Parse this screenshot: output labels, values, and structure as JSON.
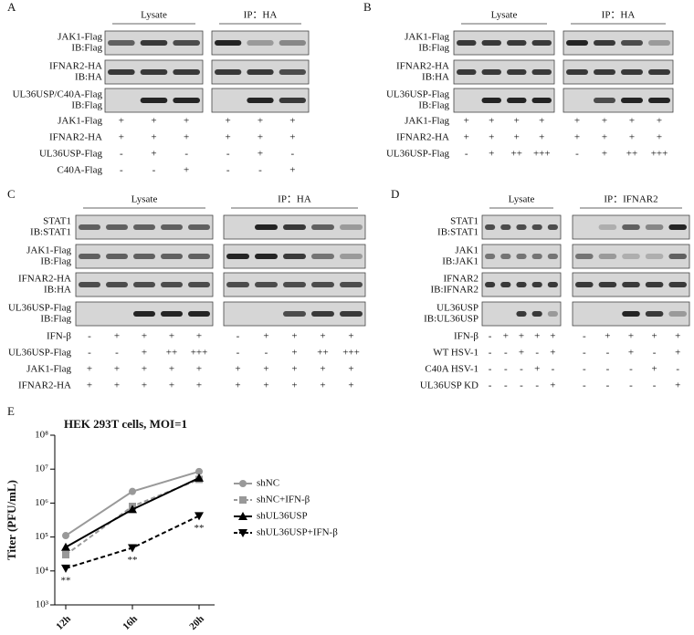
{
  "panels": [
    {
      "letter": "A",
      "groups": [
        "Lysate",
        "IP：HA"
      ],
      "blots": [
        {
          "label": [
            "JAK1-Flag",
            "IB:Flag"
          ]
        },
        {
          "label": [
            "IFNAR2-HA",
            "IB:HA"
          ]
        },
        {
          "label": [
            "UL36USP/C40A-Flag",
            "IB:Flag"
          ]
        }
      ],
      "conditions": [
        {
          "label": "JAK1-Flag",
          "lysate": [
            "+",
            "+",
            "+"
          ],
          "ip": [
            "+",
            "+",
            "+"
          ]
        },
        {
          "label": "IFNAR2-HA",
          "lysate": [
            "+",
            "+",
            "+"
          ],
          "ip": [
            "+",
            "+",
            "+"
          ]
        },
        {
          "label": "UL36USP-Flag",
          "lysate": [
            "-",
            "+",
            "-"
          ],
          "ip": [
            "-",
            "+",
            "-"
          ]
        },
        {
          "label": "C40A-Flag",
          "lysate": [
            "-",
            "-",
            "+"
          ],
          "ip": [
            "-",
            "-",
            "+"
          ]
        }
      ]
    },
    {
      "letter": "B",
      "groups": [
        "Lysate",
        "IP：HA"
      ],
      "blots": [
        {
          "label": [
            "JAK1-Flag",
            "IB:Flag"
          ]
        },
        {
          "label": [
            "IFNAR2-HA",
            "IB:HA"
          ]
        },
        {
          "label": [
            "UL36USP-Flag",
            "IB:Flag"
          ]
        }
      ],
      "conditions": [
        {
          "label": "JAK1-Flag",
          "lysate": [
            "+",
            "+",
            "+",
            "+"
          ],
          "ip": [
            "+",
            "+",
            "+",
            "+"
          ]
        },
        {
          "label": "IFNAR2-HA",
          "lysate": [
            "+",
            "+",
            "+",
            "+"
          ],
          "ip": [
            "+",
            "+",
            "+",
            "+"
          ]
        },
        {
          "label": "UL36USP-Flag",
          "lysate": [
            "-",
            "+",
            "++",
            "+++"
          ],
          "ip": [
            "-",
            "+",
            "++",
            "+++"
          ]
        }
      ]
    },
    {
      "letter": "C",
      "groups": [
        "Lysate",
        "IP：HA"
      ],
      "blots": [
        {
          "label": [
            "STAT1",
            "IB:STAT1"
          ]
        },
        {
          "label": [
            "JAK1-Flag",
            "IB:Flag"
          ]
        },
        {
          "label": [
            "IFNAR2-HA",
            "IB:HA"
          ]
        },
        {
          "label": [
            "UL36USP-Flag",
            "IB:Flag"
          ]
        }
      ],
      "conditions": [
        {
          "label": "IFN-β",
          "lysate": [
            "-",
            "+",
            "+",
            "+",
            "+"
          ],
          "ip": [
            "-",
            "+",
            "+",
            "+",
            "+"
          ]
        },
        {
          "label": "UL36USP-Flag",
          "lysate": [
            "-",
            "-",
            "+",
            "++",
            "+++"
          ],
          "ip": [
            "-",
            "-",
            "+",
            "++",
            "+++"
          ]
        },
        {
          "label": "JAK1-Flag",
          "lysate": [
            "+",
            "+",
            "+",
            "+",
            "+"
          ],
          "ip": [
            "+",
            "+",
            "+",
            "+",
            "+"
          ]
        },
        {
          "label": "IFNAR2-HA",
          "lysate": [
            "+",
            "+",
            "+",
            "+",
            "+"
          ],
          "ip": [
            "+",
            "+",
            "+",
            "+",
            "+"
          ]
        }
      ]
    },
    {
      "letter": "D",
      "groups": [
        "Lysate",
        "IP：IFNAR2"
      ],
      "blots": [
        {
          "label": [
            "STAT1",
            "IB:STAT1"
          ]
        },
        {
          "label": [
            "JAK1",
            "IB:JAK1"
          ]
        },
        {
          "label": [
            "IFNAR2",
            "IB:IFNAR2"
          ]
        },
        {
          "label": [
            "UL36USP",
            "IB:UL36USP"
          ]
        }
      ],
      "conditions": [
        {
          "label": "IFN-β",
          "lysate": [
            "-",
            "+",
            "+",
            "+",
            "+"
          ],
          "ip": [
            "-",
            "+",
            "+",
            "+",
            "+"
          ]
        },
        {
          "label": "WT HSV-1",
          "lysate": [
            "-",
            "-",
            "+",
            "-",
            "+"
          ],
          "ip": [
            "-",
            "-",
            "+",
            "-",
            "+"
          ]
        },
        {
          "label": "C40A HSV-1",
          "lysate": [
            "-",
            "-",
            "-",
            "+",
            "-"
          ],
          "ip": [
            "-",
            "-",
            "-",
            "+",
            "-"
          ]
        },
        {
          "label": "UL36USP KD",
          "lysate": [
            "-",
            "-",
            "-",
            "-",
            "+"
          ],
          "ip": [
            "-",
            "-",
            "-",
            "-",
            "+"
          ]
        }
      ]
    }
  ],
  "chart_data": {
    "type": "line",
    "letter": "E",
    "title": "HEK 293T cells, MOI=1",
    "y_label": "Titer (PFU/mL)",
    "log_scale": true,
    "ylim": [
      1000,
      100000000
    ],
    "yticks": [
      {
        "value": 1000,
        "label": "10³"
      },
      {
        "value": 10000,
        "label": "10⁴"
      },
      {
        "value": 100000,
        "label": "10⁵"
      },
      {
        "value": 1000000,
        "label": "10⁶"
      },
      {
        "value": 10000000,
        "label": "10⁷"
      },
      {
        "value": 100000000,
        "label": "10⁸"
      }
    ],
    "categories": [
      "12h",
      "16h",
      "20h"
    ],
    "series": [
      {
        "name": "shNC",
        "color": "#999999",
        "marker": "circle",
        "dashed": false,
        "values": [
          110000,
          2200000,
          8500000
        ]
      },
      {
        "name": "shNC+IFN-β",
        "color": "#999999",
        "marker": "square",
        "dashed": true,
        "values": [
          30000,
          800000,
          5000000
        ]
      },
      {
        "name": "shUL36USP",
        "color": "#000000",
        "marker": "triangle",
        "dashed": false,
        "values": [
          50000,
          650000,
          5500000
        ]
      },
      {
        "name": "shUL36USP+IFN-β",
        "color": "#000000",
        "marker": "triangle-down",
        "dashed": true,
        "values": [
          12000,
          48000,
          420000
        ]
      }
    ],
    "annotations": [
      "**",
      "**",
      "**"
    ]
  }
}
